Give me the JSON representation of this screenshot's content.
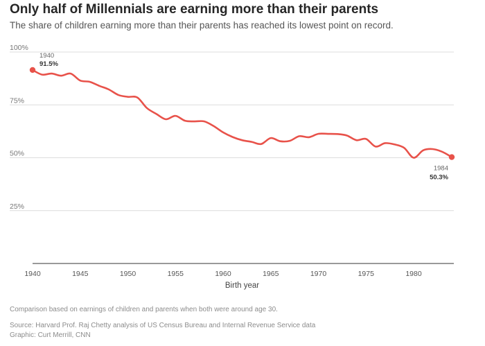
{
  "header": {
    "title": "Only half of Millennials are earning more than their parents",
    "subtitle": "The share of children earning more than their parents has reached its lowest point on record."
  },
  "footer": {
    "note": "Comparison based on earnings of children and parents when both were around age 30.",
    "source": "Source: Harvard Prof. Raj Chetty analysis of US Census Bureau and Internal Revenue Service data",
    "credit": "Graphic: Curt Merrill, CNN"
  },
  "chart_data": {
    "type": "line",
    "title": "Only half of Millennials are earning more than their parents",
    "xlabel": "Birth year",
    "ylabel": "",
    "xlim": [
      1940,
      1984
    ],
    "ylim": [
      0,
      100
    ],
    "x_ticks": [
      1940,
      1945,
      1950,
      1955,
      1960,
      1965,
      1970,
      1975,
      1980
    ],
    "x_tick_labels": [
      "1940",
      "1945",
      "1950",
      "1955",
      "1960",
      "1965",
      "1970",
      "1975",
      "1980"
    ],
    "y_ticks": [
      25,
      50,
      75,
      100
    ],
    "y_tick_labels": [
      "25%",
      "50%",
      "75%",
      "100%"
    ],
    "grid": true,
    "line_color": "#e8524a",
    "x": [
      1940,
      1941,
      1942,
      1943,
      1944,
      1945,
      1946,
      1947,
      1948,
      1949,
      1950,
      1951,
      1952,
      1953,
      1954,
      1955,
      1956,
      1957,
      1958,
      1959,
      1960,
      1961,
      1962,
      1963,
      1964,
      1965,
      1966,
      1967,
      1968,
      1969,
      1970,
      1971,
      1972,
      1973,
      1974,
      1975,
      1976,
      1977,
      1978,
      1979,
      1980,
      1981,
      1982,
      1983,
      1984
    ],
    "values": [
      91.5,
      89.3,
      89.8,
      88.8,
      89.8,
      86.5,
      85.9,
      84.0,
      82.3,
      79.7,
      78.8,
      78.5,
      73.5,
      70.7,
      68.2,
      69.8,
      67.5,
      67.2,
      67.2,
      65.0,
      62.0,
      59.8,
      58.3,
      57.5,
      56.5,
      59.3,
      57.8,
      58.0,
      60.2,
      59.7,
      61.3,
      61.3,
      61.2,
      60.5,
      58.3,
      58.9,
      55.3,
      56.9,
      56.3,
      54.7,
      50.0,
      53.5,
      54.1,
      52.8,
      50.3
    ],
    "annotations": [
      {
        "year": "1940",
        "value": "91.5%",
        "x": 1940,
        "y": 91.5
      },
      {
        "year": "1984",
        "value": "50.3%",
        "x": 1984,
        "y": 50.3
      }
    ]
  }
}
